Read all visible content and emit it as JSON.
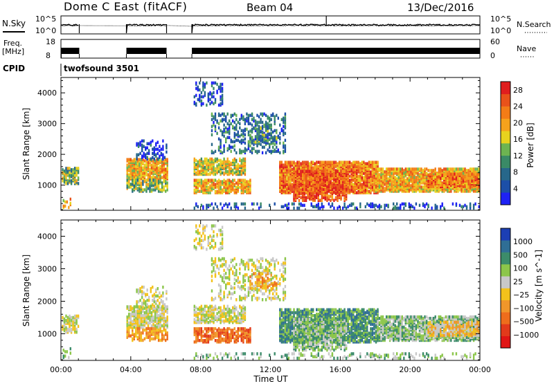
{
  "header": {
    "station": "Dome C East (fitACF)",
    "beam": "Beam 04",
    "date": "13/Dec/2016"
  },
  "noise_panel": {
    "left_label": "N.Sky",
    "left_ticks": [
      "10^5",
      "10^0"
    ],
    "right_ticks": [
      "10^5",
      "10^0"
    ],
    "right_label": "N.Search"
  },
  "freq_panel": {
    "left_label_1": "Freq.",
    "left_label_2": "[MHz]",
    "left_ticks": [
      "18",
      "8"
    ],
    "right_ticks": [
      "60",
      "0"
    ],
    "right_label": "Nave"
  },
  "cpid": {
    "label": "CPID",
    "value": "twofsound 3501"
  },
  "chart_data": [
    {
      "type": "heatmap",
      "title": "Power",
      "xlabel": "",
      "ylabel": "Slant Range [km]",
      "x_ticks": [
        "00:00",
        "04:00",
        "08:00",
        "12:00",
        "16:00",
        "20:00",
        "00:00"
      ],
      "y_ticks": [
        "1000",
        "2000",
        "3000",
        "4000"
      ],
      "ylim": [
        180,
        4500
      ],
      "colorbar": {
        "label": "Power [dB]",
        "ticks": [
          "4",
          "8",
          "12",
          "16",
          "20",
          "24",
          "28"
        ],
        "range": [
          0,
          30
        ],
        "colors": [
          "#1e22f5",
          "#1c4fa8",
          "#27678a",
          "#3a8a66",
          "#6db451",
          "#e8d21e",
          "#f6a21c",
          "#f37c17",
          "#e9521a",
          "#e01e1e"
        ]
      },
      "x_gaps_hours": [
        [
          1.05,
          3.75
        ],
        [
          6.05,
          7.5
        ]
      ]
    },
    {
      "type": "heatmap",
      "title": "Velocity",
      "xlabel": "Time UT",
      "ylabel": "Slant Range [km]",
      "x_ticks": [
        "00:00",
        "04:00",
        "08:00",
        "12:00",
        "16:00",
        "20:00",
        "00:00"
      ],
      "y_ticks": [
        "1000",
        "2000",
        "3000",
        "4000"
      ],
      "ylim": [
        180,
        4500
      ],
      "colorbar": {
        "label": "Velocity [m s^-1]",
        "ticks": [
          "1000",
          "500",
          "100",
          "25",
          "−25",
          "−100",
          "−500",
          "−1000"
        ],
        "colors": [
          "#1c3fb4",
          "#2f6e95",
          "#3c8c6a",
          "#8cc64a",
          "#c8c8c8",
          "#f3c21b",
          "#f0962a",
          "#ee6d1c",
          "#e23a1b",
          "#e01515"
        ]
      },
      "x_gaps_hours": [
        [
          1.05,
          3.75
        ],
        [
          6.05,
          7.5
        ]
      ]
    }
  ],
  "colors": {
    "axis": "#000000",
    "background": "#ffffff"
  }
}
